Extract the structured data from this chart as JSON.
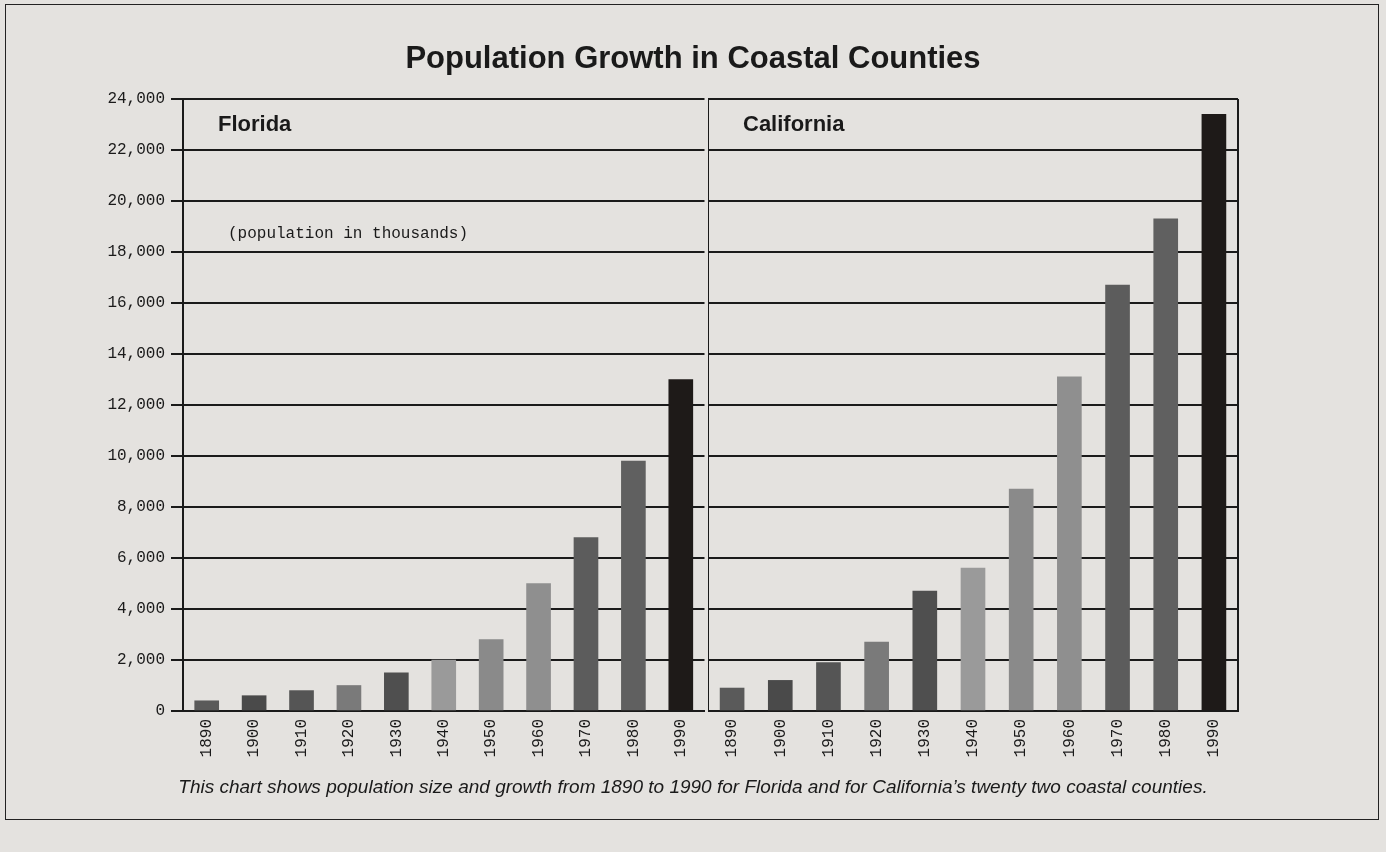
{
  "chart_data": [
    {
      "type": "bar",
      "title": "Population Growth in Coastal Counties",
      "subtitle": "Florida",
      "ylabel": "(population in thousands)",
      "annotations": [
        "This chart shows population size and growth from 1890 to 1990 for Florida and for California’s twenty two coastal counties."
      ],
      "categories": [
        "1890",
        "1900",
        "1910",
        "1920",
        "1930",
        "1940",
        "1950",
        "1960",
        "1970",
        "1980",
        "1990"
      ],
      "values": [
        400,
        600,
        800,
        1000,
        1500,
        2000,
        2800,
        5000,
        6800,
        9800,
        13000
      ],
      "colors": [
        "#5a5a5a",
        "#4a4a4a",
        "#555555",
        "#7a7a7a",
        "#4f4f4f",
        "#9a9a9a",
        "#8a8a8a",
        "#8f8f8f",
        "#5c5c5c",
        "#606060",
        "#1e1a18"
      ],
      "ylim": [
        0,
        24000
      ],
      "yticks": [
        {
          "value": 0,
          "label": "0"
        },
        {
          "value": 2000,
          "label": "2,000"
        },
        {
          "value": 4000,
          "label": "4,000"
        },
        {
          "value": 6000,
          "label": "6,000"
        },
        {
          "value": 8000,
          "label": "8,000"
        },
        {
          "value": 10000,
          "label": "10,000"
        },
        {
          "value": 12000,
          "label": "12,000"
        },
        {
          "value": 14000,
          "label": "14,000"
        },
        {
          "value": 16000,
          "label": "16,000"
        },
        {
          "value": 18000,
          "label": "18,000"
        },
        {
          "value": 20000,
          "label": "20,000"
        },
        {
          "value": 22000,
          "label": "22,000"
        },
        {
          "value": 24000,
          "label": "24,000"
        }
      ],
      "grid": "y"
    },
    {
      "type": "bar",
      "subtitle": "California",
      "categories": [
        "1890",
        "1900",
        "1910",
        "1920",
        "1930",
        "1940",
        "1950",
        "1960",
        "1970",
        "1980",
        "1990"
      ],
      "values": [
        900,
        1200,
        1900,
        2700,
        4700,
        5600,
        8700,
        13100,
        16700,
        19300,
        23400
      ],
      "colors": [
        "#5a5a5a",
        "#4a4a4a",
        "#555555",
        "#7a7a7a",
        "#4f4f4f",
        "#9a9a9a",
        "#8a8a8a",
        "#8f8f8f",
        "#5c5c5c",
        "#606060",
        "#1e1a18"
      ],
      "ylim": [
        0,
        24000
      ],
      "yticks": [
        0,
        2000,
        4000,
        6000,
        8000,
        10000,
        12000,
        14000,
        16000,
        18000,
        20000,
        22000,
        24000
      ],
      "grid": "y",
      "tick_labels": "x"
    }
  ]
}
